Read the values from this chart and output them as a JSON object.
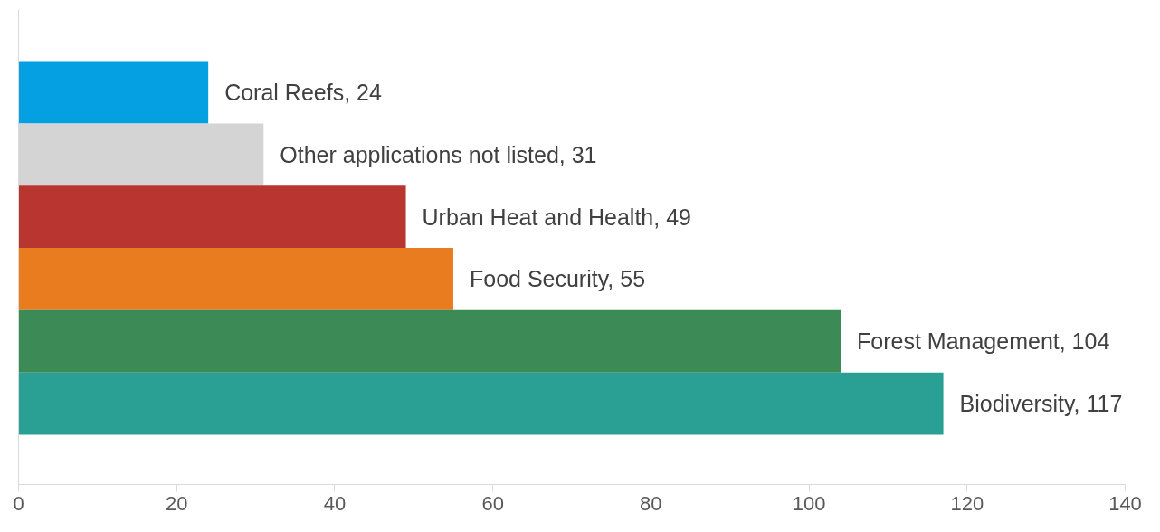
{
  "chart_data": {
    "type": "bar",
    "orientation": "horizontal",
    "categories": [
      null,
      null,
      null,
      null,
      null,
      null
    ],
    "values": [
      24,
      31,
      49,
      55,
      104,
      117
    ],
    "value_labels": [
      "Coral Reefs, 24",
      "Other applications not listed, 31",
      "Urban Heat and Health, 49",
      "Food Security, 55",
      "Forest Management, 104",
      "Biodiversity, 117"
    ],
    "colors": [
      "#05a0e1",
      "#d4d4d4",
      "#b83530",
      "#e87c1e",
      "#3c8a55",
      "#29a093"
    ],
    "xlim": [
      0,
      140
    ],
    "xticks": [
      0,
      20,
      40,
      60,
      80,
      100,
      120,
      140
    ],
    "tick_labels": "x",
    "grid": false
  }
}
